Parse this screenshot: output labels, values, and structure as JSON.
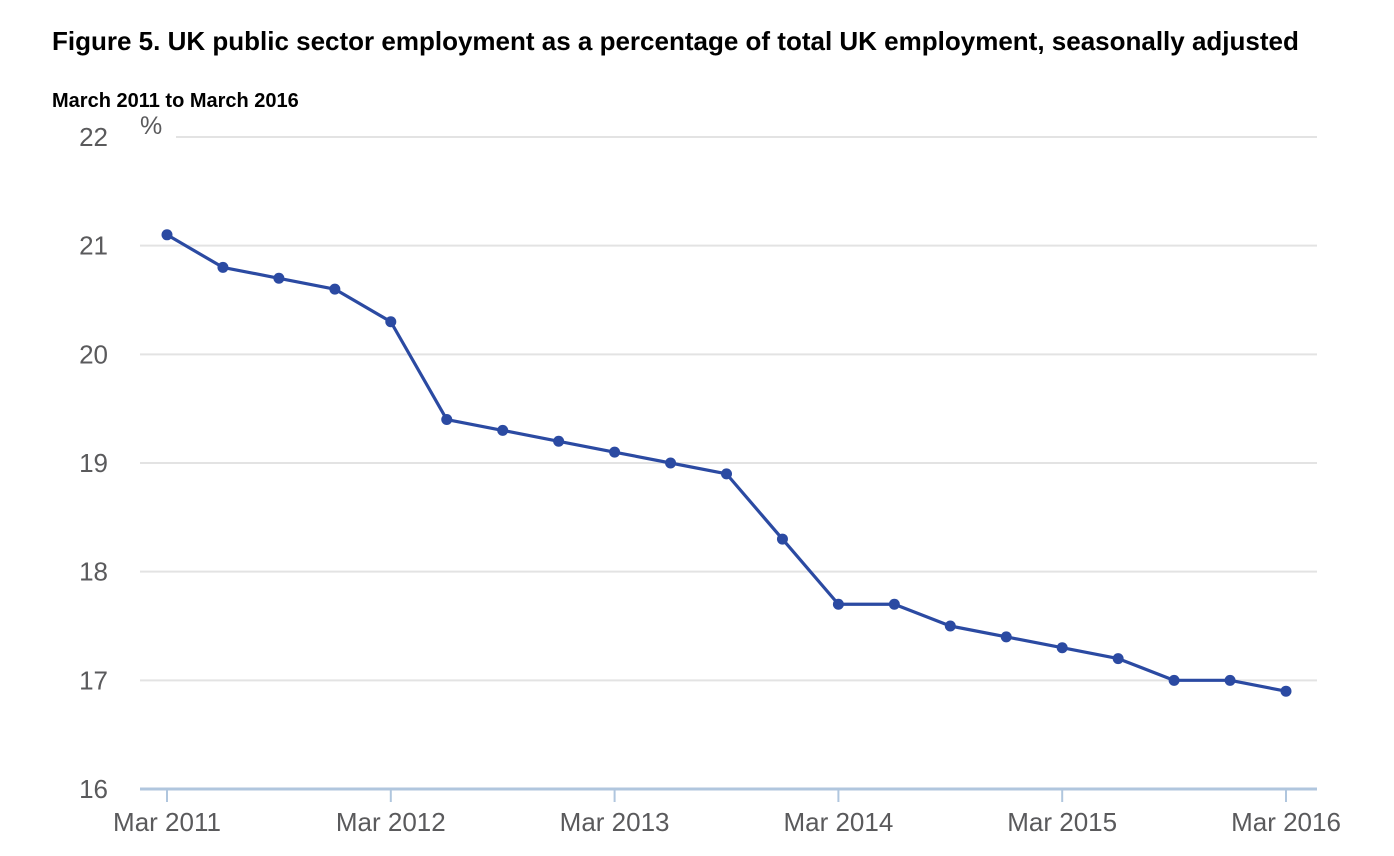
{
  "chart": {
    "title": "Figure 5. UK public sector employment as a percentage of total UK employment, seasonally adjusted",
    "subtitle": "March 2011 to March 2016",
    "unit_label": "%"
  },
  "chart_data": {
    "type": "line",
    "title": "Figure 5. UK public sector employment as a percentage of total UK employment, seasonally adjusted",
    "subtitle": "March 2011 to March 2016",
    "ylabel": "%",
    "xlabel": "",
    "x": [
      "Mar 2011",
      "Jun 2011",
      "Sep 2011",
      "Dec 2011",
      "Mar 2012",
      "Jun 2012",
      "Sep 2012",
      "Dec 2012",
      "Mar 2013",
      "Jun 2013",
      "Sep 2013",
      "Dec 2013",
      "Mar 2014",
      "Jun 2014",
      "Sep 2014",
      "Dec 2014",
      "Mar 2015",
      "Jun 2015",
      "Sep 2015",
      "Dec 2015",
      "Mar 2016"
    ],
    "values": [
      21.1,
      20.8,
      20.7,
      20.6,
      20.3,
      19.4,
      19.3,
      19.2,
      19.1,
      19.0,
      18.9,
      18.3,
      17.7,
      17.7,
      17.5,
      17.4,
      17.3,
      17.2,
      17.0,
      17.0,
      16.9
    ],
    "x_tick_labels": [
      "Mar 2011",
      "Mar 2012",
      "Mar 2013",
      "Mar 2014",
      "Mar 2015",
      "Mar 2016"
    ],
    "y_ticks": [
      16,
      17,
      18,
      19,
      20,
      21,
      22
    ],
    "ylim": [
      16,
      22
    ],
    "grid": "horizontal",
    "legend": "none",
    "marker": "circle",
    "colors": {
      "line": "#2b4aa2",
      "grid": "#e3e3e3",
      "axis": "#b0c6de",
      "tick_text": "#5a5a5c",
      "title_text": "#000000"
    }
  }
}
